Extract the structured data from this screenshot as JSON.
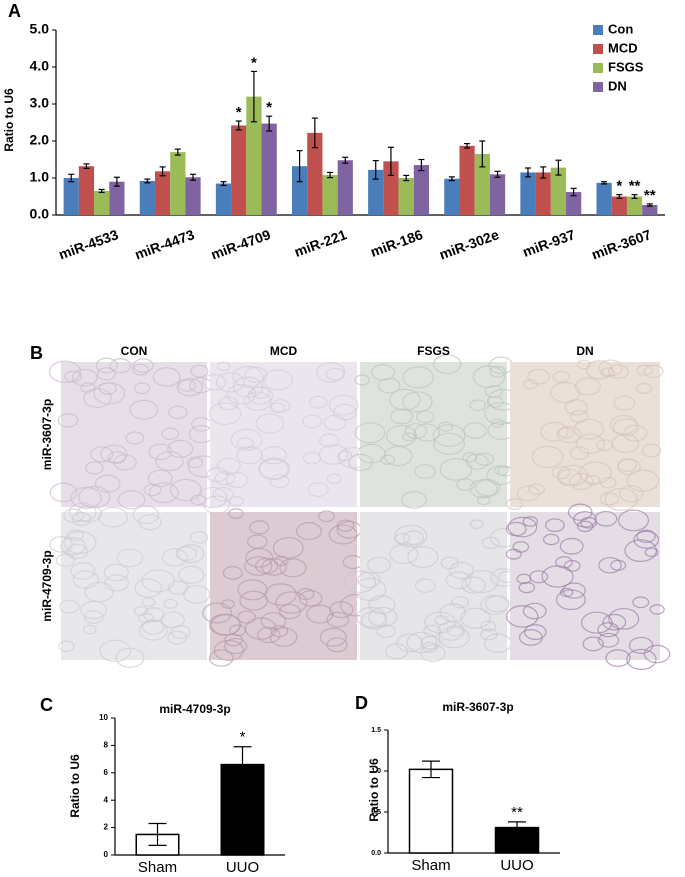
{
  "chart_data": [
    {
      "type": "bar",
      "panel_label": "A",
      "ylabel": "Ratio to U6",
      "categories": [
        "miR-4533",
        "miR-4473",
        "miR-4709",
        "miR-221",
        "miR-186",
        "miR-302e",
        "miR-937",
        "miR-3607"
      ],
      "series": [
        {
          "name": "Con",
          "color": "#4a7ebb",
          "values": [
            1.0,
            0.92,
            0.85,
            1.32,
            1.22,
            0.98,
            1.15,
            0.87
          ],
          "errors": [
            0.1,
            0.05,
            0.05,
            0.42,
            0.25,
            0.05,
            0.12,
            0.03
          ],
          "markers": [
            null,
            null,
            null,
            null,
            null,
            null,
            null,
            null
          ]
        },
        {
          "name": "MCD",
          "color": "#c0504d",
          "values": [
            1.32,
            1.18,
            2.42,
            2.22,
            1.45,
            1.87,
            1.15,
            0.5
          ],
          "errors": [
            0.06,
            0.12,
            0.12,
            0.4,
            0.38,
            0.06,
            0.15,
            0.05
          ],
          "markers": [
            null,
            null,
            "*",
            null,
            null,
            null,
            null,
            "*"
          ]
        },
        {
          "name": "FSGS",
          "color": "#9bbb59",
          "values": [
            0.65,
            1.7,
            3.2,
            1.08,
            1.0,
            1.65,
            1.28,
            0.5
          ],
          "errors": [
            0.04,
            0.08,
            0.68,
            0.07,
            0.07,
            0.35,
            0.2,
            0.05
          ],
          "markers": [
            null,
            null,
            "*",
            null,
            null,
            null,
            null,
            "**"
          ]
        },
        {
          "name": "DN",
          "color": "#8064a2",
          "values": [
            0.9,
            1.02,
            2.47,
            1.48,
            1.35,
            1.1,
            0.62,
            0.27
          ],
          "errors": [
            0.12,
            0.08,
            0.2,
            0.08,
            0.15,
            0.08,
            0.1,
            0.03
          ],
          "markers": [
            null,
            null,
            "*",
            null,
            null,
            null,
            null,
            "**"
          ]
        }
      ],
      "ylim": [
        0,
        5
      ],
      "yticks": [
        {
          "value": 0,
          "label": "0.0"
        },
        {
          "value": 1,
          "label": "1.0"
        },
        {
          "value": 2,
          "label": "2.0"
        },
        {
          "value": 3,
          "label": "3.0"
        },
        {
          "value": 4,
          "label": "4.0"
        },
        {
          "value": 5,
          "label": "5.0"
        }
      ],
      "legend": "upper right"
    },
    {
      "type": "bar",
      "panel_label": "C",
      "title": "miR-4709-3p",
      "ylabel": "Ratio to U6",
      "categories": [
        "Sham",
        "UUO"
      ],
      "values": [
        1.5,
        6.6
      ],
      "errors": [
        0.8,
        1.3
      ],
      "markers": [
        null,
        "*"
      ],
      "colors": [
        "#ffffff",
        "#000000"
      ],
      "ylim": [
        0,
        10
      ],
      "yticks": [
        0,
        2,
        4,
        6,
        8,
        10
      ]
    },
    {
      "type": "bar",
      "panel_label": "D",
      "title": "miR-3607-3p",
      "ylabel": "Ratio to U6",
      "categories": [
        "Sham",
        "UUO"
      ],
      "values": [
        1.02,
        0.31
      ],
      "errors": [
        0.1,
        0.07
      ],
      "markers": [
        null,
        "**"
      ],
      "colors": [
        "#ffffff",
        "#000000"
      ],
      "ylim": [
        0,
        1.5
      ],
      "yticks": [
        {
          "value": 0,
          "label": "0.0"
        },
        {
          "value": 0.5,
          "label": "0.5"
        },
        {
          "value": 1,
          "label": "1.0"
        },
        {
          "value": 1.5,
          "label": "1.5"
        }
      ]
    }
  ],
  "panel_b": {
    "label": "B",
    "columns": [
      "CON",
      "MCD",
      "FSGS",
      "DN"
    ],
    "rows": [
      "miR-3607-3p",
      "miR-4709-3p"
    ]
  }
}
